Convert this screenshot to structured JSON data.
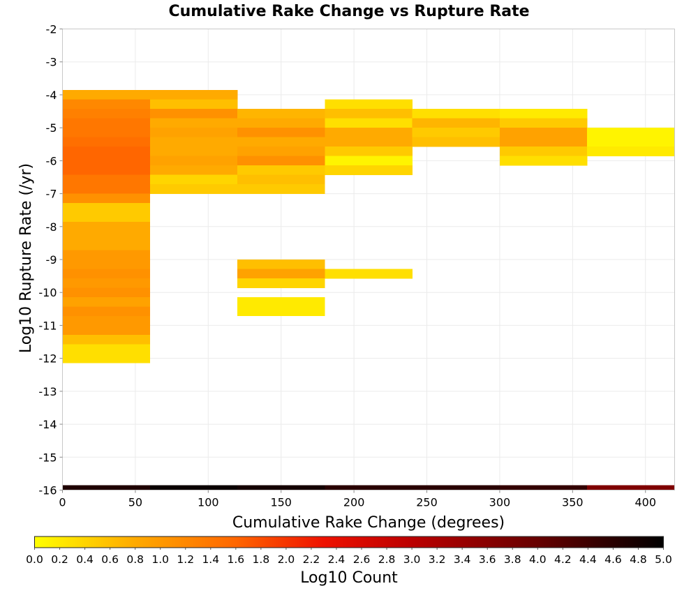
{
  "chart_data": {
    "type": "heatmap",
    "title": "Cumulative Rake Change vs Rupture Rate",
    "xlabel": "Cumulative Rake Change (degrees)",
    "ylabel": "Log10 Rupture Rate (/yr)",
    "xlim": [
      0,
      420
    ],
    "ylim": [
      -16,
      -2
    ],
    "x_ticks": [
      "0",
      "50",
      "100",
      "150",
      "200",
      "250",
      "300",
      "350",
      "400"
    ],
    "x_tick_values": [
      0,
      50,
      100,
      150,
      200,
      250,
      300,
      350,
      400
    ],
    "y_ticks": [
      "-2",
      "-3",
      "-4",
      "-5",
      "-6",
      "-7",
      "-8",
      "-9",
      "-10",
      "-11",
      "-12",
      "-13",
      "-14",
      "-15",
      "-16"
    ],
    "y_tick_values": [
      -2,
      -3,
      -4,
      -5,
      -6,
      -7,
      -8,
      -9,
      -10,
      -11,
      -12,
      -13,
      -14,
      -15,
      -16
    ],
    "grid": true,
    "x_bin_width": 60,
    "y_bin_height": 0.286,
    "colorbar": {
      "label": "Log10 Count",
      "min": 0.0,
      "max": 5.0,
      "ticks": [
        "0.0",
        "0.2",
        "0.4",
        "0.6",
        "0.8",
        "1.0",
        "1.2",
        "1.4",
        "1.6",
        "1.8",
        "2.0",
        "2.2",
        "2.4",
        "2.6",
        "2.8",
        "3.0",
        "3.2",
        "3.4",
        "3.6",
        "3.8",
        "4.0",
        "4.2",
        "4.4",
        "4.6",
        "4.8",
        "5.0"
      ],
      "tick_values": [
        0.0,
        0.2,
        0.4,
        0.6,
        0.8,
        1.0,
        1.2,
        1.4,
        1.6,
        1.8,
        2.0,
        2.2,
        2.4,
        2.6,
        2.8,
        3.0,
        3.2,
        3.4,
        3.6,
        3.8,
        4.0,
        4.2,
        4.4,
        4.6,
        4.8,
        5.0
      ],
      "stops": [
        {
          "v": 0.0,
          "color": "#ffff00"
        },
        {
          "v": 0.8,
          "color": "#ffaa00"
        },
        {
          "v": 1.6,
          "color": "#ff6600"
        },
        {
          "v": 2.3,
          "color": "#ee1100"
        },
        {
          "v": 3.0,
          "color": "#bb0000"
        },
        {
          "v": 4.0,
          "color": "#660000"
        },
        {
          "v": 5.0,
          "color": "#000000"
        }
      ]
    },
    "columns": [
      {
        "x0": 0,
        "cells": [
          {
            "y": -4.0,
            "v": 0.8
          },
          {
            "y": -4.286,
            "v": 1.2
          },
          {
            "y": -4.571,
            "v": 1.3
          },
          {
            "y": -4.857,
            "v": 1.4
          },
          {
            "y": -5.143,
            "v": 1.4
          },
          {
            "y": -5.429,
            "v": 1.5
          },
          {
            "y": -5.714,
            "v": 1.6
          },
          {
            "y": -6.0,
            "v": 1.6
          },
          {
            "y": -6.286,
            "v": 1.6
          },
          {
            "y": -6.571,
            "v": 1.4
          },
          {
            "y": -6.857,
            "v": 1.4
          },
          {
            "y": -7.143,
            "v": 1.1
          },
          {
            "y": -7.429,
            "v": 0.5
          },
          {
            "y": -7.714,
            "v": 0.5
          },
          {
            "y": -8.0,
            "v": 0.8
          },
          {
            "y": -8.286,
            "v": 0.8
          },
          {
            "y": -8.571,
            "v": 0.8
          },
          {
            "y": -8.857,
            "v": 1.0
          },
          {
            "y": -9.143,
            "v": 1.0
          },
          {
            "y": -9.429,
            "v": 1.1
          },
          {
            "y": -9.714,
            "v": 1.0
          },
          {
            "y": -10.0,
            "v": 1.1
          },
          {
            "y": -10.286,
            "v": 0.9
          },
          {
            "y": -10.571,
            "v": 1.1
          },
          {
            "y": -10.857,
            "v": 1.0
          },
          {
            "y": -11.143,
            "v": 1.0
          },
          {
            "y": -11.429,
            "v": 0.6
          },
          {
            "y": -11.714,
            "v": 0.3
          },
          {
            "y": -12.0,
            "v": 0.3
          }
        ]
      },
      {
        "x0": 60,
        "cells": [
          {
            "y": -4.0,
            "v": 0.8
          },
          {
            "y": -4.286,
            "v": 0.6
          },
          {
            "y": -4.571,
            "v": 1.1
          },
          {
            "y": -4.857,
            "v": 0.8
          },
          {
            "y": -5.143,
            "v": 0.9
          },
          {
            "y": -5.429,
            "v": 0.8
          },
          {
            "y": -5.714,
            "v": 0.8
          },
          {
            "y": -6.0,
            "v": 0.9
          },
          {
            "y": -6.286,
            "v": 0.8
          },
          {
            "y": -6.571,
            "v": 0.4
          },
          {
            "y": -6.857,
            "v": 0.5
          }
        ]
      },
      {
        "x0": 120,
        "cells": [
          {
            "y": -4.571,
            "v": 0.7
          },
          {
            "y": -4.857,
            "v": 0.8
          },
          {
            "y": -5.143,
            "v": 1.1
          },
          {
            "y": -5.429,
            "v": 0.8
          },
          {
            "y": -5.714,
            "v": 0.9
          },
          {
            "y": -6.0,
            "v": 1.1
          },
          {
            "y": -6.286,
            "v": 0.5
          },
          {
            "y": -6.571,
            "v": 0.6
          },
          {
            "y": -6.857,
            "v": 0.5
          },
          {
            "y": -9.143,
            "v": 0.6
          },
          {
            "y": -9.429,
            "v": 0.9
          },
          {
            "y": -9.714,
            "v": 0.4
          },
          {
            "y": -10.286,
            "v": 0.2
          },
          {
            "y": -10.571,
            "v": 0.2
          }
        ]
      },
      {
        "x0": 180,
        "cells": [
          {
            "y": -4.286,
            "v": 0.3
          },
          {
            "y": -4.571,
            "v": 0.6
          },
          {
            "y": -4.857,
            "v": 0.3
          },
          {
            "y": -5.143,
            "v": 0.8
          },
          {
            "y": -5.429,
            "v": 0.8
          },
          {
            "y": -5.714,
            "v": 0.5
          },
          {
            "y": -6.0,
            "v": 0.1
          },
          {
            "y": -6.286,
            "v": 0.4
          },
          {
            "y": -9.429,
            "v": 0.3
          }
        ]
      },
      {
        "x0": 240,
        "cells": [
          {
            "y": -4.571,
            "v": 0.3
          },
          {
            "y": -4.857,
            "v": 0.7
          },
          {
            "y": -5.143,
            "v": 0.5
          },
          {
            "y": -5.429,
            "v": 0.6
          }
        ]
      },
      {
        "x0": 300,
        "cells": [
          {
            "y": -4.571,
            "v": 0.2
          },
          {
            "y": -4.857,
            "v": 0.5
          },
          {
            "y": -5.143,
            "v": 0.9
          },
          {
            "y": -5.429,
            "v": 0.9
          },
          {
            "y": -5.714,
            "v": 0.5
          },
          {
            "y": -6.0,
            "v": 0.3
          }
        ]
      },
      {
        "x0": 360,
        "cells": [
          {
            "y": -5.143,
            "v": 0.1
          },
          {
            "y": -5.429,
            "v": 0.1
          },
          {
            "y": -5.714,
            "v": 0.2
          }
        ]
      }
    ],
    "bottom_row": {
      "y": -16.0,
      "height": 0.143,
      "values": [
        4.7,
        4.9,
        4.8,
        4.6,
        4.6,
        4.5,
        3.7
      ]
    }
  }
}
